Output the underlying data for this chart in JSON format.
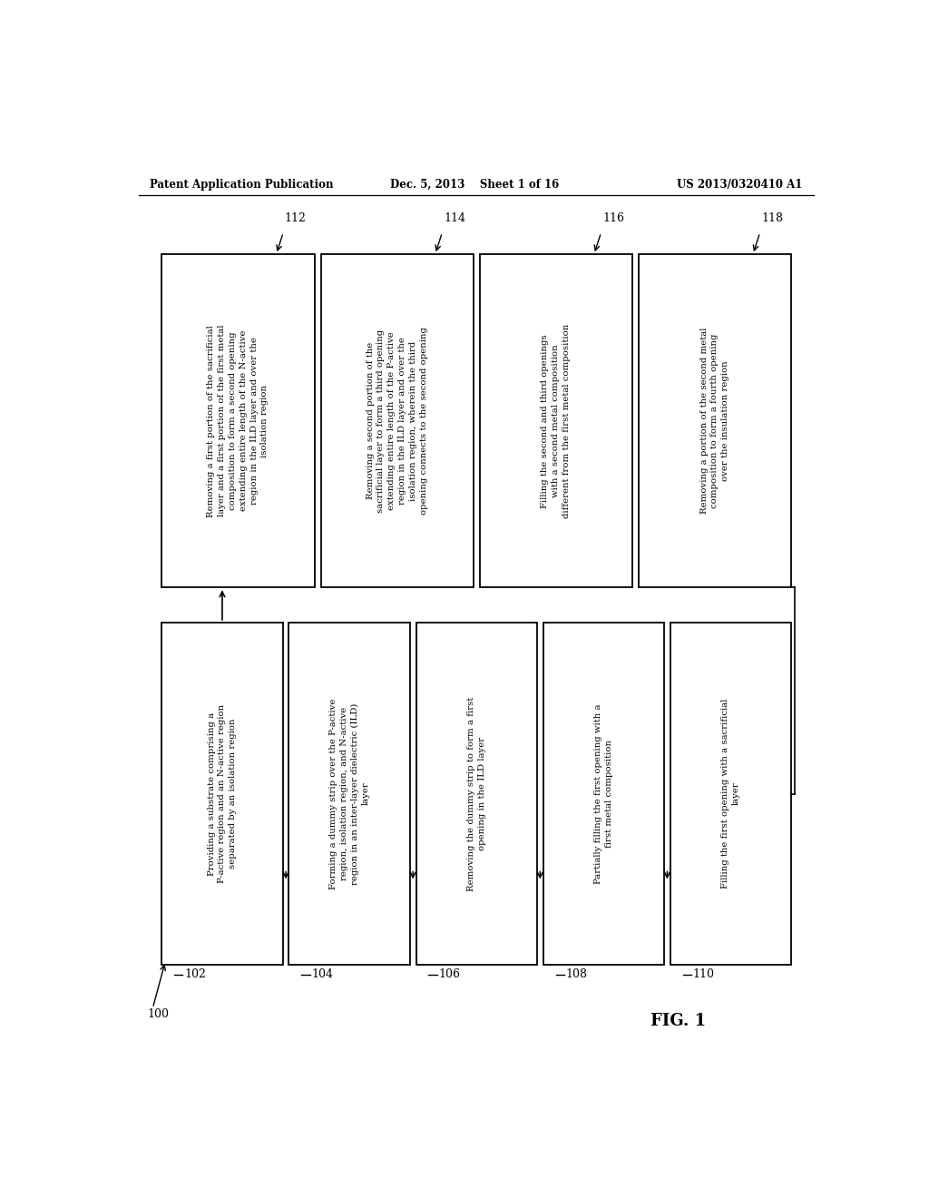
{
  "header_left": "Patent Application Publication",
  "header_center": "Dec. 5, 2013    Sheet 1 of 16",
  "header_right": "US 2013/0320410 A1",
  "fig_label": "FIG. 1",
  "background": "#ffffff",
  "bottom_boxes": [
    {
      "id": "102",
      "text": "Providing a substrate comprising a\nP-active region and an N-active region\nseparated by an isolation region"
    },
    {
      "id": "104",
      "text": "Forming a dummy strip over the P-active\nregion, isolation region, and N-active\nregion in an inter-layer dielectric (ILD)\nlayer"
    },
    {
      "id": "106",
      "text": "Removing the dummy strip to form a first\nopening in the ILD layer"
    },
    {
      "id": "108",
      "text": "Partially filling the first opening with a\nfirst metal composition"
    },
    {
      "id": "110",
      "text": "Filling the first opening with a sacrificial\nlayer"
    }
  ],
  "top_boxes": [
    {
      "id": "112",
      "text": "Removing a first portion of the sacrificial\nlayer and a first portion of the first metal\ncomposition to form a second opening\nextending entire length of the N-active\nregion in the ILD layer and over the\nisolation region"
    },
    {
      "id": "114",
      "text": "Removing a second portion of the\nsacrificial layer to form a third opening\nextending entire length of the P-active\nregion in the ILD layer and over the\nisolation region, wherein the third\nopening connects to the second opening"
    },
    {
      "id": "116",
      "text": "Filling the second and third openings\nwith a second metal composition\ndifferent from the first metal composition"
    },
    {
      "id": "118",
      "text": "Removing a portion of the second metal\ncomposition to form a fourth opening\nover the insulation region"
    }
  ]
}
